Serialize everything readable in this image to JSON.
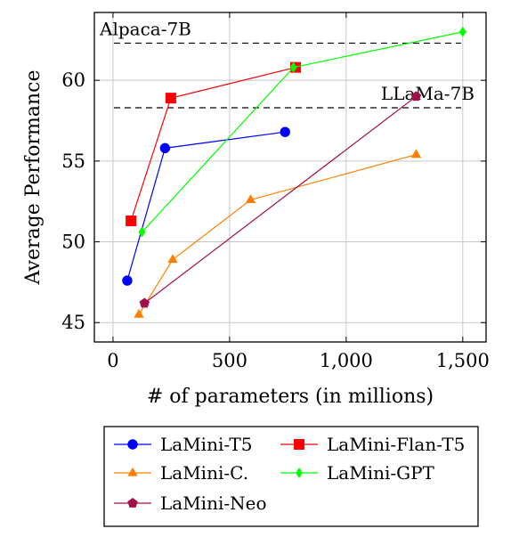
{
  "chart_data": {
    "type": "line",
    "title": "",
    "xlabel": "# of parameters (in millions)",
    "ylabel": "Average Performance",
    "xlim": [
      -80,
      1600
    ],
    "ylim": [
      43.8,
      64.2
    ],
    "xticks": [
      0,
      500,
      1000,
      1500
    ],
    "xtick_labels": [
      "0",
      "500",
      "1,000",
      "1,500"
    ],
    "yticks": [
      45,
      50,
      55,
      60
    ],
    "ytick_labels": [
      "45",
      "50",
      "55",
      "60"
    ],
    "grid": true,
    "legend_position": "bottom",
    "reference_lines": [
      {
        "label": "Alpaca-7B",
        "y": 62.3
      },
      {
        "label": "LLaMa-7B",
        "y": 58.3
      }
    ],
    "series": [
      {
        "name": "LaMini-T5",
        "color": "#0000ff",
        "marker": "circle",
        "x": [
          61,
          223,
          738
        ],
        "y": [
          47.6,
          55.8,
          56.8
        ]
      },
      {
        "name": "LaMini-Flan-T5",
        "color": "#ff0000",
        "marker": "square",
        "x": [
          77,
          248,
          783
        ],
        "y": [
          51.3,
          58.9,
          60.8
        ]
      },
      {
        "name": "LaMini-C.",
        "color": "#ff8000",
        "marker": "triangle",
        "x": [
          111,
          256,
          590,
          1300
        ],
        "y": [
          45.5,
          48.9,
          52.6,
          55.4
        ]
      },
      {
        "name": "LaMini-GPT",
        "color": "#00ff00",
        "marker": "diamond",
        "x": [
          124,
          774,
          1500
        ],
        "y": [
          50.6,
          60.8,
          63.0
        ]
      },
      {
        "name": "LaMini-Neo",
        "color": "#a0104a",
        "marker": "pentagon",
        "x": [
          135,
          1300
        ],
        "y": [
          46.2,
          59.0
        ]
      }
    ]
  }
}
